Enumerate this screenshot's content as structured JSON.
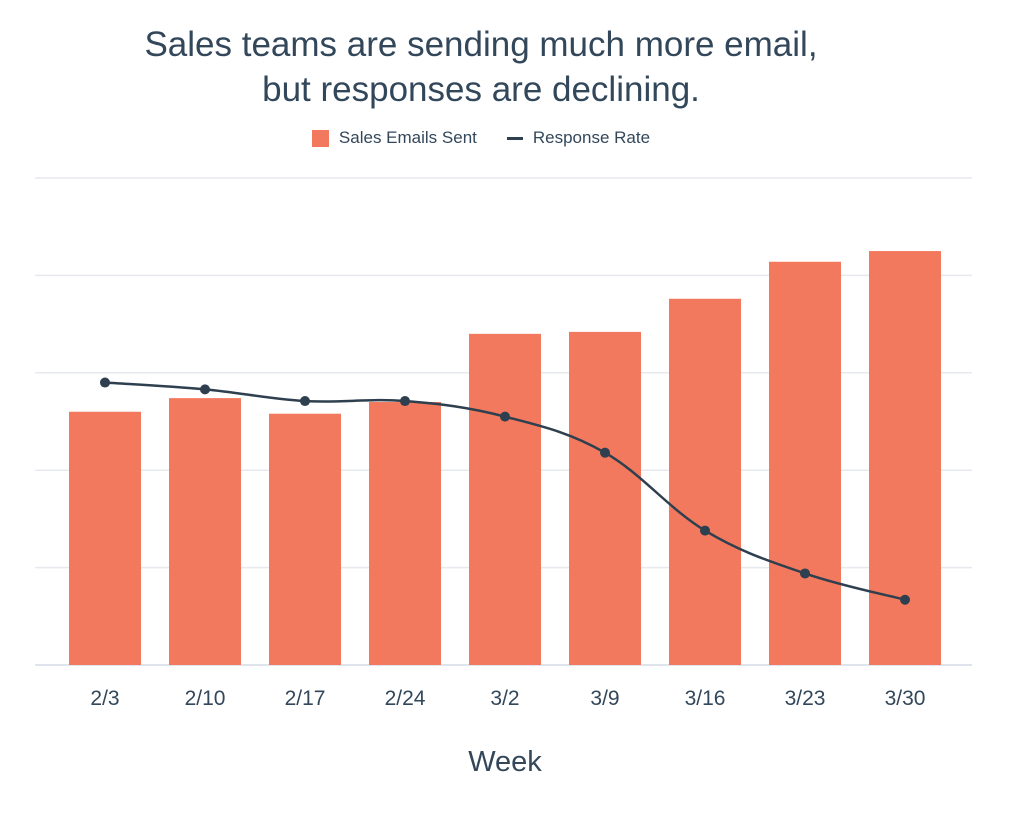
{
  "chart_data": {
    "type": "bar",
    "title": [
      "Sales teams are sending much more email,",
      "but responses are declining."
    ],
    "xlabel": "Week",
    "ylabel": "",
    "categories": [
      "2/3",
      "2/10",
      "2/17",
      "2/24",
      "3/2",
      "3/9",
      "3/16",
      "3/23",
      "3/30"
    ],
    "series": [
      {
        "name": "Sales Emails Sent",
        "type": "bar",
        "color": "#f2795d",
        "values": [
          2.6,
          2.74,
          2.58,
          2.7,
          3.4,
          3.42,
          3.76,
          4.14,
          4.25
        ]
      },
      {
        "name": "Response Rate",
        "type": "line",
        "color": "#2e3f4f",
        "values": [
          2.9,
          2.83,
          2.71,
          2.71,
          2.55,
          2.18,
          1.38,
          0.94,
          0.67
        ]
      }
    ],
    "ylim": [
      0,
      5
    ],
    "gridlines": [
      1,
      2,
      3,
      4,
      5
    ],
    "grid": true,
    "legend_position": "top-center"
  }
}
